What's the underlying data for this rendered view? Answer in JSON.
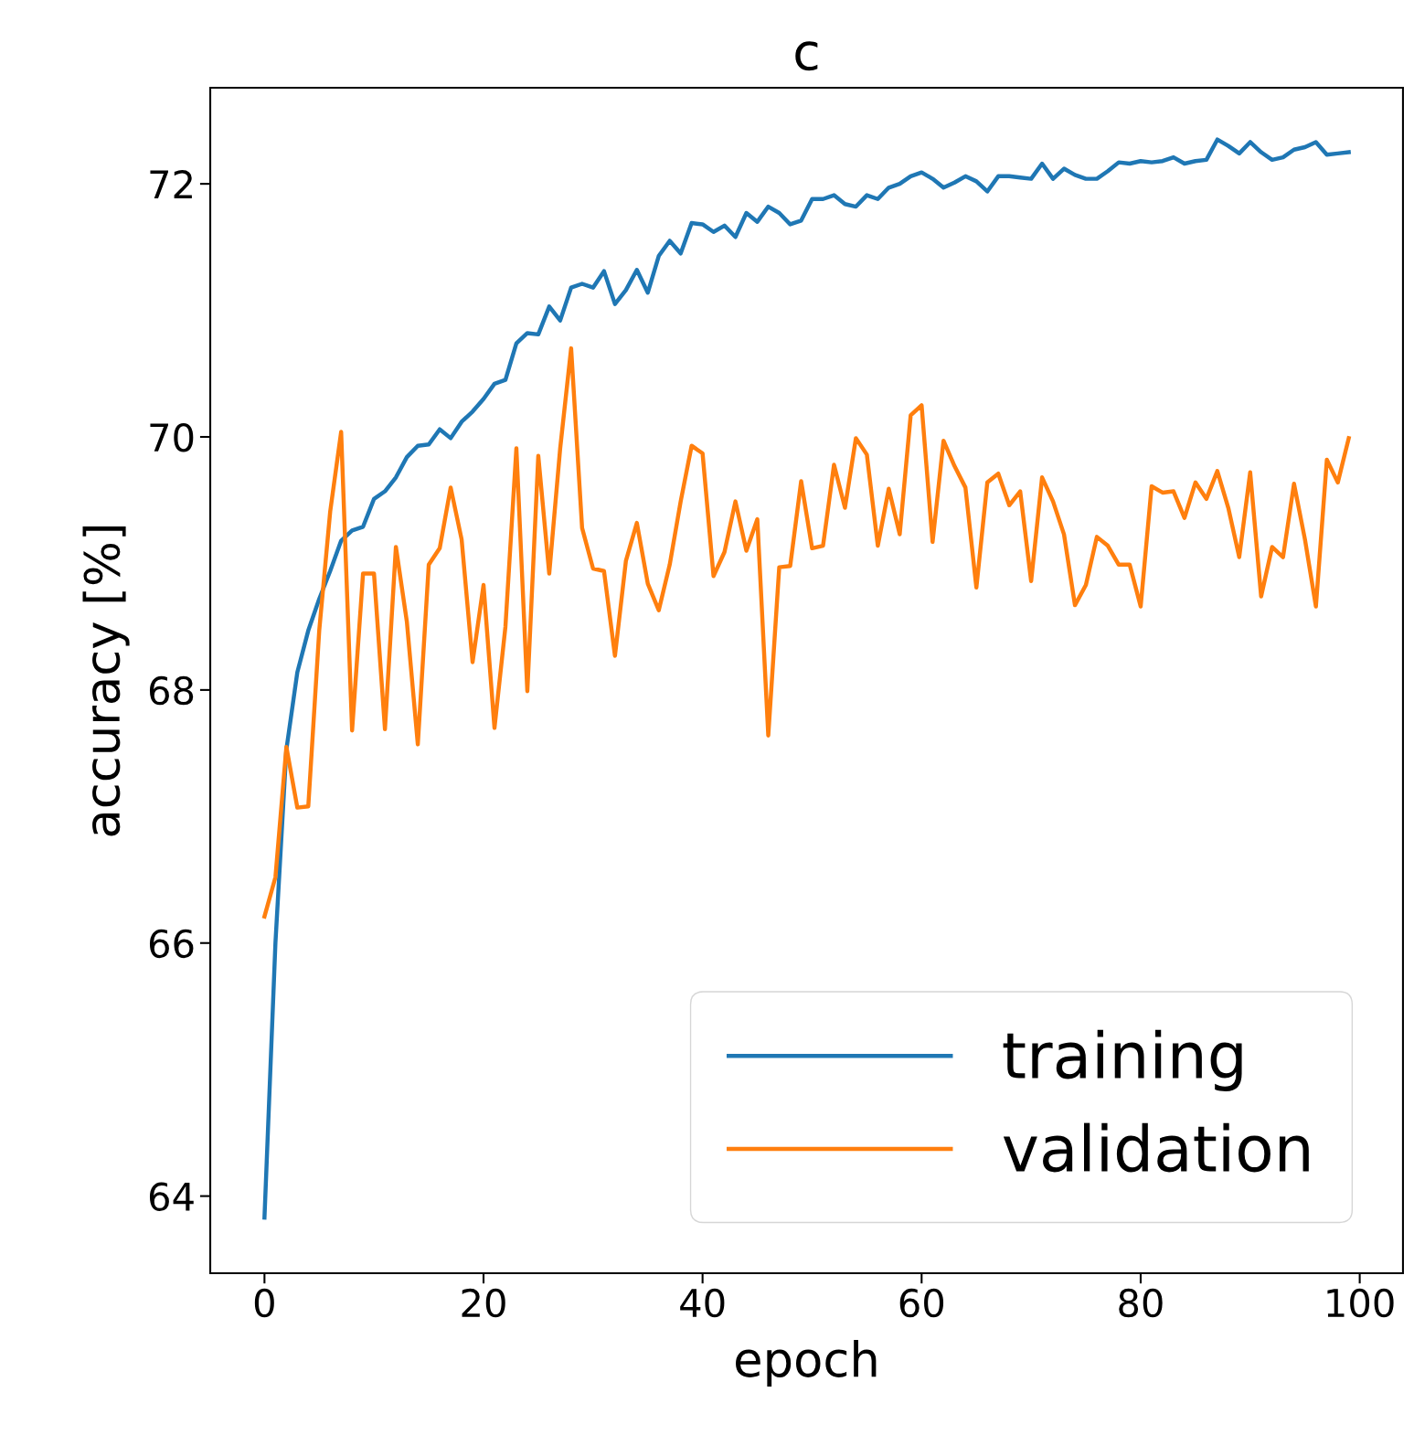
{
  "chart_data": {
    "type": "line",
    "title": "c",
    "xlabel": "epoch",
    "ylabel": "accuracy [%]",
    "x": [
      0,
      1,
      2,
      3,
      4,
      5,
      6,
      7,
      8,
      9,
      10,
      11,
      12,
      13,
      14,
      15,
      16,
      17,
      18,
      19,
      20,
      21,
      22,
      23,
      24,
      25,
      26,
      27,
      28,
      29,
      30,
      31,
      32,
      33,
      34,
      35,
      36,
      37,
      38,
      39,
      40,
      41,
      42,
      43,
      44,
      45,
      46,
      47,
      48,
      49,
      50,
      51,
      52,
      53,
      54,
      55,
      56,
      57,
      58,
      59,
      60,
      61,
      62,
      63,
      64,
      65,
      66,
      67,
      68,
      69,
      70,
      71,
      72,
      73,
      74,
      75,
      76,
      77,
      78,
      79,
      80,
      81,
      82,
      83,
      84,
      85,
      86,
      87,
      88,
      89,
      90,
      91,
      92,
      93,
      94,
      95,
      96,
      97,
      98,
      99
    ],
    "series": [
      {
        "name": "training",
        "color": "#1f77b4",
        "values": [
          63.83,
          66.0,
          67.53,
          68.14,
          68.47,
          68.72,
          68.94,
          69.18,
          69.26,
          69.29,
          69.51,
          69.57,
          69.68,
          69.84,
          69.93,
          69.94,
          70.06,
          69.99,
          70.12,
          70.2,
          70.3,
          70.42,
          70.45,
          70.74,
          70.82,
          70.81,
          71.03,
          70.92,
          71.18,
          71.21,
          71.18,
          71.31,
          71.05,
          71.16,
          71.32,
          71.14,
          71.43,
          71.55,
          71.45,
          71.69,
          71.68,
          71.62,
          71.67,
          71.58,
          71.77,
          71.7,
          71.82,
          71.77,
          71.68,
          71.71,
          71.88,
          71.88,
          71.91,
          71.84,
          71.82,
          71.91,
          71.88,
          71.97,
          72.0,
          72.06,
          72.09,
          72.04,
          71.97,
          72.01,
          72.06,
          72.02,
          71.94,
          72.06,
          72.06,
          72.05,
          72.04,
          72.16,
          72.04,
          72.12,
          72.07,
          72.04,
          72.04,
          72.1,
          72.17,
          72.16,
          72.18,
          72.17,
          72.18,
          72.21,
          72.16,
          72.18,
          72.19,
          72.35,
          72.3,
          72.24,
          72.33,
          72.25,
          72.19,
          72.21,
          72.27,
          72.29,
          72.33,
          72.23,
          72.24,
          72.25
        ]
      },
      {
        "name": "validation",
        "color": "#ff7f0e",
        "values": [
          66.21,
          66.52,
          67.55,
          67.07,
          67.08,
          68.47,
          69.41,
          70.04,
          67.68,
          68.92,
          68.92,
          67.69,
          69.13,
          68.54,
          67.57,
          68.99,
          69.12,
          69.6,
          69.19,
          68.22,
          68.83,
          67.7,
          68.5,
          69.91,
          67.99,
          69.85,
          68.92,
          69.91,
          70.7,
          69.28,
          68.96,
          68.94,
          68.27,
          69.02,
          69.32,
          68.84,
          68.63,
          68.99,
          69.49,
          69.93,
          69.87,
          68.9,
          69.09,
          69.49,
          69.1,
          69.35,
          67.64,
          68.97,
          68.98,
          69.65,
          69.12,
          69.14,
          69.78,
          69.44,
          69.99,
          69.86,
          69.14,
          69.59,
          69.23,
          70.17,
          70.25,
          69.17,
          69.97,
          69.77,
          69.6,
          68.81,
          69.64,
          69.71,
          69.46,
          69.57,
          68.86,
          69.68,
          69.49,
          69.23,
          68.67,
          68.83,
          69.21,
          69.14,
          68.99,
          68.99,
          68.66,
          69.61,
          69.56,
          69.57,
          69.36,
          69.64,
          69.51,
          69.73,
          69.44,
          69.05,
          69.72,
          68.74,
          69.13,
          69.05,
          69.63,
          69.19,
          68.66,
          69.82,
          69.64,
          69.99
        ]
      }
    ],
    "xlim": [
      -4.95,
      103.95
    ],
    "ylim": [
      63.39,
      72.76
    ],
    "xticks": [
      0,
      20,
      40,
      60,
      80,
      100
    ],
    "yticks": [
      64,
      66,
      68,
      70,
      72
    ],
    "legend": "lower right",
    "grid": false
  }
}
